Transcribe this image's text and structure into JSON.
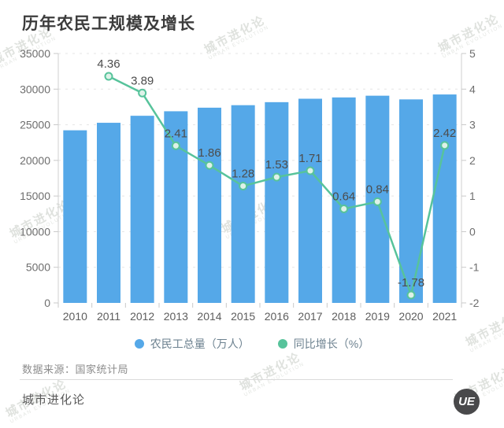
{
  "title": "历年农民工规模及增长",
  "colors": {
    "bar": "#55a8e8",
    "line": "#57c39b",
    "marker_fill": "#def2e8",
    "grid": "#e5e5e5",
    "spine": "#cfcfcf",
    "tick": "#c9c9c9",
    "axis_text": "#6e6e6e",
    "data_label": "#4c4c4c",
    "legend_text": "#6d8290",
    "watermark": "#c8cdc6"
  },
  "chart_data": {
    "type": "bar+line",
    "title": "历年农民工规模及增长",
    "categories": [
      "2010",
      "2011",
      "2012",
      "2013",
      "2014",
      "2015",
      "2016",
      "2017",
      "2018",
      "2019",
      "2020",
      "2021"
    ],
    "series": [
      {
        "name": "农民工总量（万人）",
        "type": "bar",
        "axis": "left",
        "values": [
          24223,
          25278,
          26261,
          26894,
          27395,
          27747,
          28171,
          28652,
          28836,
          29077,
          28560,
          29251
        ]
      },
      {
        "name": "同比增长（%）",
        "type": "line",
        "axis": "right",
        "values": [
          null,
          4.36,
          3.89,
          2.41,
          1.86,
          1.28,
          1.53,
          1.71,
          0.64,
          0.84,
          -1.78,
          2.42
        ],
        "labels": [
          "",
          "4.36",
          "3.89",
          "2.41",
          "1.86",
          "1.28",
          "1.53",
          "1.71",
          "0.64",
          "0.84",
          "-1.78",
          "2.42"
        ]
      }
    ],
    "left_axis": {
      "min": 0,
      "max": 35000,
      "ticks": [
        0,
        5000,
        10000,
        15000,
        20000,
        25000,
        30000,
        35000
      ]
    },
    "right_axis": {
      "min": -2,
      "max": 5,
      "ticks": [
        -2,
        -1,
        0,
        1,
        2,
        3,
        4,
        5
      ]
    },
    "grid": "dashed-horizontal",
    "legend_position": "bottom"
  },
  "footer": {
    "source": "数据来源：国家统计局",
    "brand": "城市进化论",
    "logo": "UE"
  },
  "watermark": {
    "text": "城市进化论",
    "subtext": "URBAN EVOLUTION"
  }
}
